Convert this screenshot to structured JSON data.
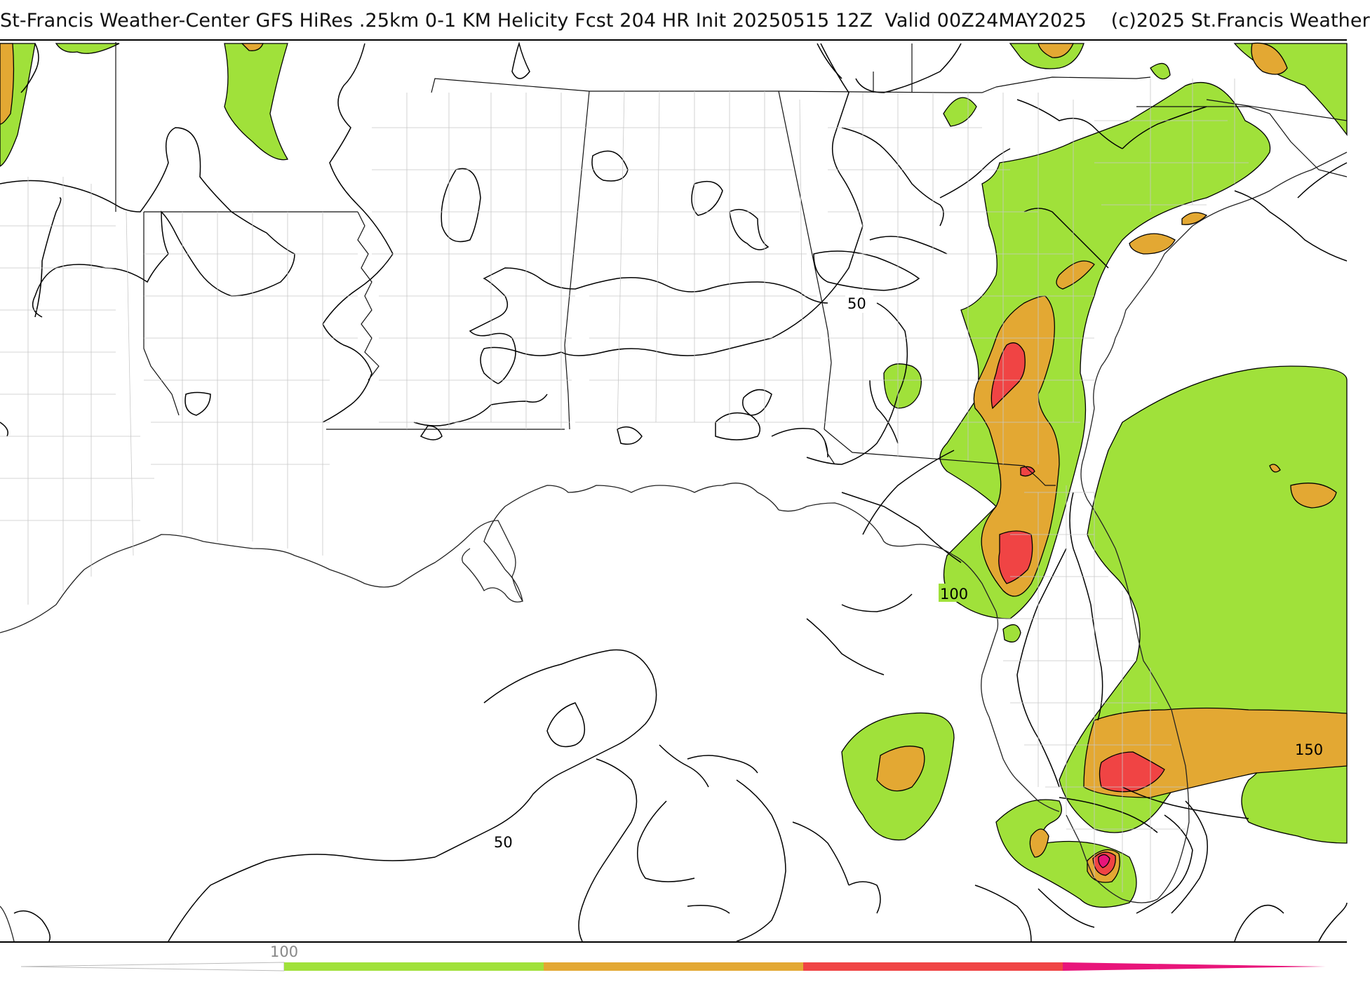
{
  "title": "St-Francis Weather-Center GFS HiRes .25km 0-1 KM Helicity Fcst 204 HR Init 20250515 12Z  Valid 00Z24MAY2025    (c)2025 St.Francis Weather",
  "contour_labels": [
    "50",
    "50",
    "100",
    "150"
  ],
  "colorbar": {
    "labels": [
      "100"
    ],
    "colors": [
      "#ffffff",
      "#a0e13a",
      "#e3a833",
      "#f04444",
      "#e8157a"
    ]
  },
  "legend_fills": {
    "light_green": "#a0e13a",
    "orange": "#e3a833",
    "red": "#f04444",
    "magenta": "#e8157a"
  }
}
